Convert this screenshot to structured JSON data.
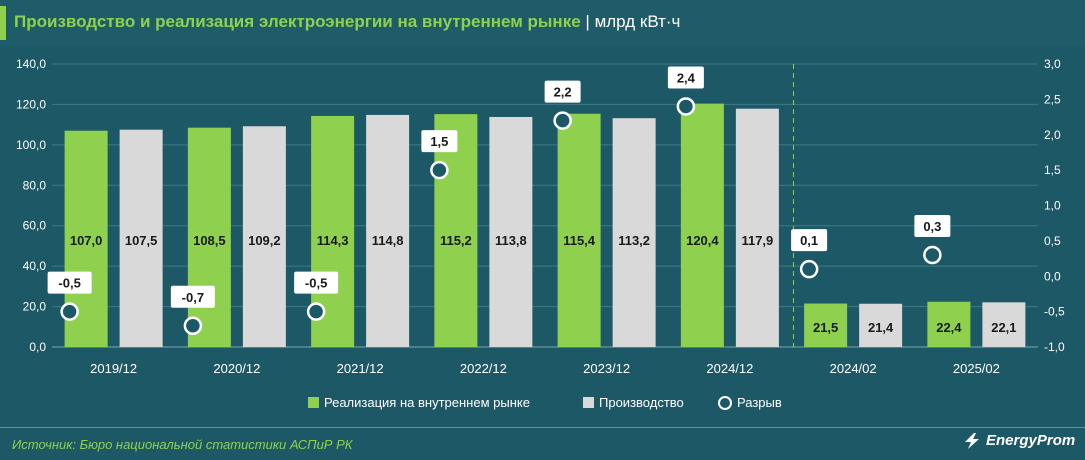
{
  "title": {
    "main": "Производство и реализация электроэнергии на внутреннем рынке",
    "separator": "|",
    "unit": "млрд кВт·ч"
  },
  "chart_data": {
    "type": "bar",
    "categories": [
      "2019/12",
      "2020/12",
      "2021/12",
      "2022/12",
      "2023/12",
      "2024/12",
      "2024/02",
      "2025/02"
    ],
    "series": [
      {
        "name": "Реализация на внутреннем рынке",
        "type": "bar",
        "axis": "left",
        "color": "#8fd14f",
        "values": [
          107.0,
          108.5,
          114.3,
          115.2,
          115.4,
          120.4,
          21.5,
          22.4
        ],
        "labels": [
          "107,0",
          "108,5",
          "114,3",
          "115,2",
          "115,4",
          "120,4",
          "21,5",
          "22,4"
        ]
      },
      {
        "name": "Производство",
        "type": "bar",
        "axis": "right-of-pair",
        "color": "#d9d9d9",
        "values": [
          107.5,
          109.2,
          114.8,
          113.8,
          113.2,
          117.9,
          21.4,
          22.1
        ],
        "labels": [
          "107,5",
          "109,2",
          "114,8",
          "113,8",
          "113,2",
          "117,9",
          "21,4",
          "22,1"
        ]
      },
      {
        "name": "Разрыв",
        "type": "marker",
        "axis": "right",
        "color": "#1d5866",
        "values": [
          -0.5,
          -0.7,
          -0.5,
          1.5,
          2.2,
          2.4,
          0.1,
          0.3
        ],
        "labels": [
          "-0,5",
          "-0,7",
          "-0,5",
          "1,5",
          "2,2",
          "2,4",
          "0,1",
          "0,3"
        ]
      }
    ],
    "y_left": {
      "min": 0,
      "max": 140,
      "ticks": [
        "0,0",
        "20,0",
        "40,0",
        "60,0",
        "80,0",
        "100,0",
        "120,0",
        "140,0"
      ]
    },
    "y_right": {
      "min": -1.0,
      "max": 3.0,
      "ticks": [
        "-1,0",
        "-0,5",
        "0,0",
        "0,5",
        "1,0",
        "1,5",
        "2,0",
        "2,5",
        "3,0"
      ]
    },
    "divider_after_category": "2024/12",
    "grid": true,
    "legend_position": "bottom"
  },
  "source_text": "Источник: Бюро национальной статистики АСПиР РК",
  "logo_text": "EnergyProm",
  "colors": {
    "background": "#1d5866",
    "accent": "#8fd14f",
    "production": "#d9d9d9",
    "text": "#ffffff"
  }
}
